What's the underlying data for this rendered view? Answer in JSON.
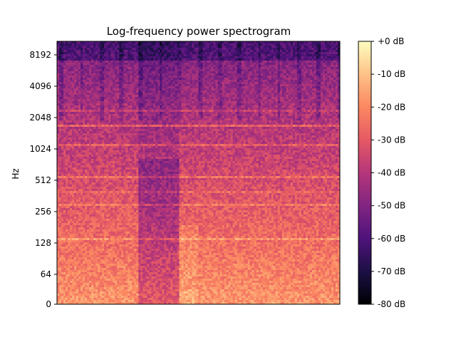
{
  "chart_data": {
    "type": "heatmap",
    "title": "Log-frequency power spectrogram",
    "xlabel": "",
    "ylabel": "Hz",
    "x_ticks": [],
    "y_scale": "log",
    "y_ticks": [
      "0",
      "64",
      "128",
      "256",
      "512",
      "1024",
      "2048",
      "4096",
      "8192"
    ],
    "y_range_hz": [
      0,
      11025
    ],
    "colorbar": {
      "label_format": "%+2.0f dB",
      "ticks": [
        "+0 dB",
        "-10 dB",
        "-20 dB",
        "-30 dB",
        "-40 dB",
        "-50 dB",
        "-60 dB",
        "-70 dB",
        "-80 dB"
      ],
      "range_db": [
        -80,
        0
      ],
      "colormap": "magma",
      "colors": [
        "#000004",
        "#1c1044",
        "#4f127b",
        "#812581",
        "#b5367a",
        "#e55964",
        "#fb8761",
        "#fec287",
        "#fcfdbf"
      ]
    },
    "grid": false,
    "prominent_bands_hz": [
      1100,
      1700,
      2400,
      550,
      400,
      300,
      140
    ]
  }
}
